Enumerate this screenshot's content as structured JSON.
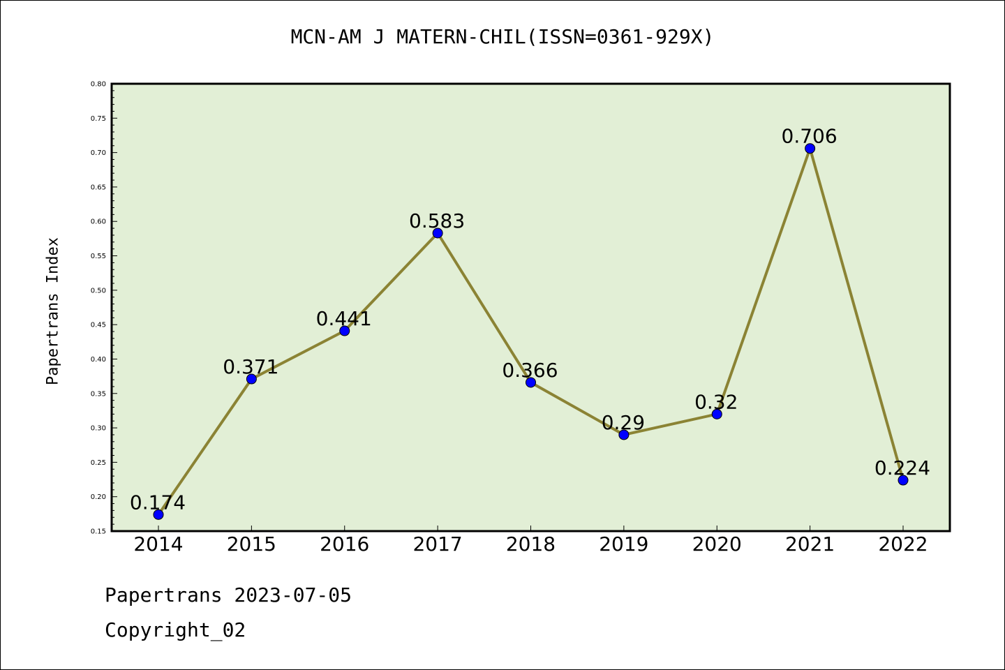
{
  "chart_data": {
    "type": "line",
    "title": "MCN-AM J MATERN-CHIL(ISSN=0361-929X)",
    "xlabel": "",
    "ylabel": "Papertrans Index",
    "categories": [
      "2014",
      "2015",
      "2016",
      "2017",
      "2018",
      "2019",
      "2020",
      "2021",
      "2022"
    ],
    "series": [
      {
        "values": [
          0.174,
          0.371,
          0.441,
          0.583,
          0.366,
          0.29,
          0.32,
          0.706,
          0.224
        ]
      }
    ],
    "data_labels": [
      "0.174",
      "0.371",
      "0.441",
      "0.583",
      "0.366",
      "0.29",
      "0.32",
      "0.706",
      "0.224"
    ],
    "ylim": [
      0.15,
      0.8
    ],
    "yticks": [
      "0.15",
      "0.20",
      "0.25",
      "0.30",
      "0.35",
      "0.40",
      "0.45",
      "0.50",
      "0.55",
      "0.60",
      "0.65",
      "0.70",
      "0.75",
      "0.80"
    ],
    "grid": false,
    "colors": {
      "background": "#e2efd6",
      "line": "#8b8334",
      "marker": "#0000ff"
    }
  },
  "footer": {
    "line1": "Papertrans 2023-07-05",
    "line2": "Copyright_02"
  }
}
